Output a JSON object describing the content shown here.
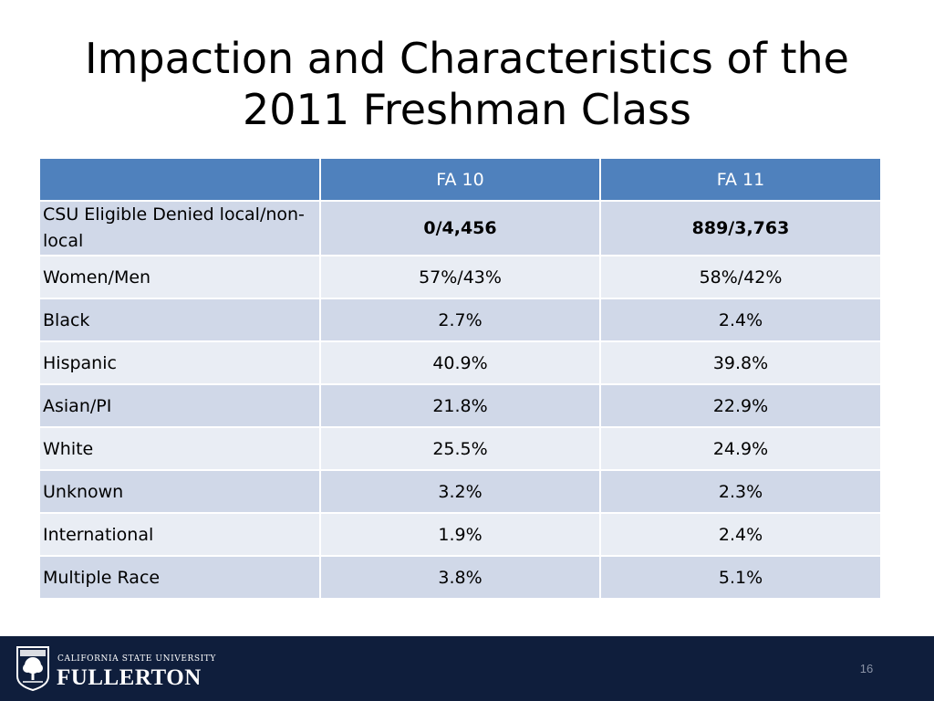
{
  "slide": {
    "title": "Impaction and Characteristics of the 2011 Freshman Class"
  },
  "table": {
    "headers": [
      "",
      "FA 10",
      "FA 11"
    ],
    "rows": [
      {
        "label": "CSU Eligible Denied local/non-local",
        "fa10": "0/4,456",
        "fa11": "889/3,763"
      },
      {
        "label": "Women/Men",
        "fa10": "57%/43%",
        "fa11": "58%/42%"
      },
      {
        "label": "Black",
        "fa10": "2.7%",
        "fa11": "2.4%"
      },
      {
        "label": "Hispanic",
        "fa10": "40.9%",
        "fa11": "39.8%"
      },
      {
        "label": "Asian/PI",
        "fa10": "21.8%",
        "fa11": "22.9%"
      },
      {
        "label": "White",
        "fa10": "25.5%",
        "fa11": "24.9%"
      },
      {
        "label": "Unknown",
        "fa10": "3.2%",
        "fa11": "2.3%"
      },
      {
        "label": "International",
        "fa10": "1.9%",
        "fa11": "2.4%"
      },
      {
        "label": "Multiple Race",
        "fa10": "3.8%",
        "fa11": "5.1%"
      }
    ]
  },
  "footer": {
    "university_line": "CALIFORNIA STATE UNIVERSITY",
    "university_name": "FULLERTON",
    "page_number": "16",
    "logo_icon": "tree-seal-icon"
  },
  "colors": {
    "header_bg": "#4f81bd",
    "row_odd": "#d0d8e8",
    "row_even": "#e9edf4",
    "footer_bg": "#0f1e3c"
  }
}
